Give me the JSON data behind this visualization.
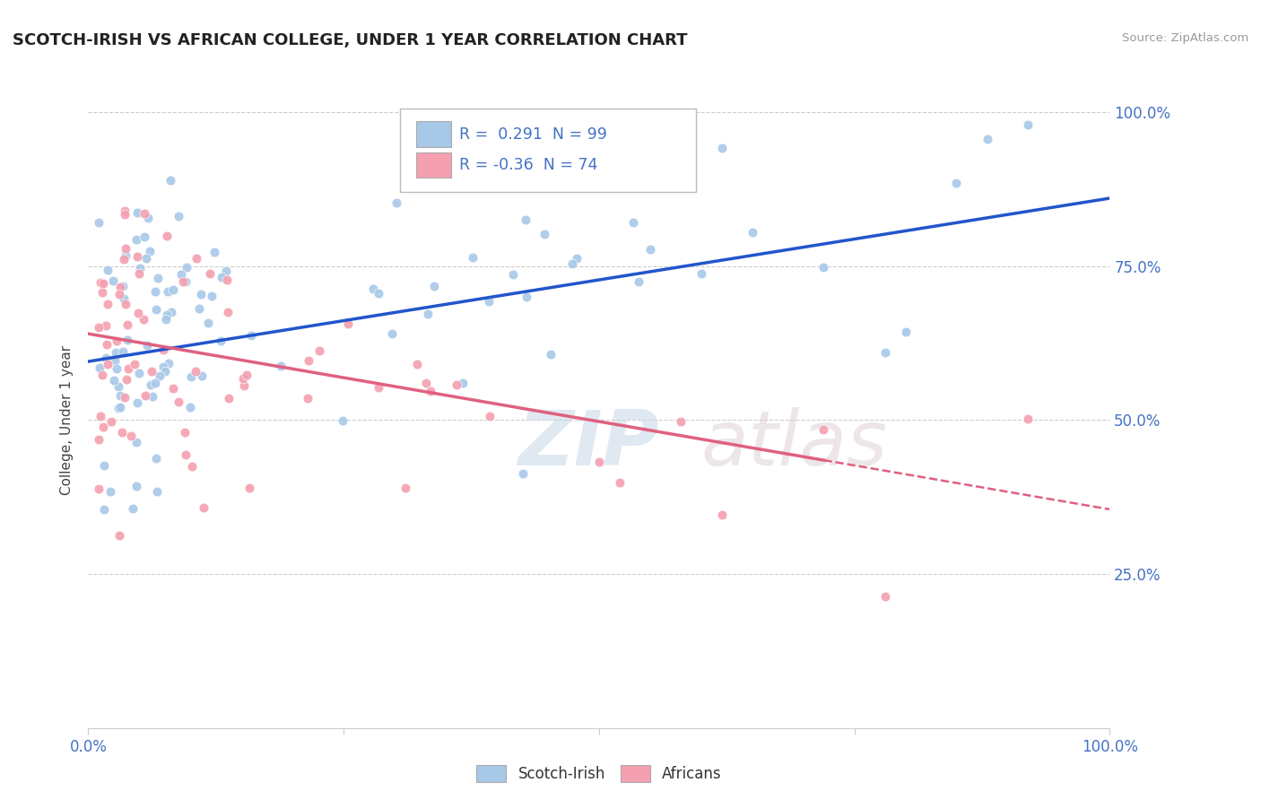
{
  "title": "SCOTCH-IRISH VS AFRICAN COLLEGE, UNDER 1 YEAR CORRELATION CHART",
  "source": "Source: ZipAtlas.com",
  "ylabel": "College, Under 1 year",
  "R_scotch": 0.291,
  "N_scotch": 99,
  "R_african": -0.36,
  "N_african": 74,
  "watermark_zip": "ZIP",
  "watermark_atlas": "atlas",
  "scotch_color": "#a8c8e8",
  "african_color": "#f4a0b0",
  "scotch_line_color": "#2255cc",
  "african_line_color": "#e06080",
  "legend_text_color": "#4472c4",
  "tick_label_color": "#4472c4",
  "title_color": "#222222",
  "grid_color": "#cccccc",
  "background": "#ffffff",
  "scotch_line_intercept": 0.595,
  "scotch_line_slope": 0.265,
  "african_line_intercept": 0.64,
  "african_line_slope": -0.285
}
